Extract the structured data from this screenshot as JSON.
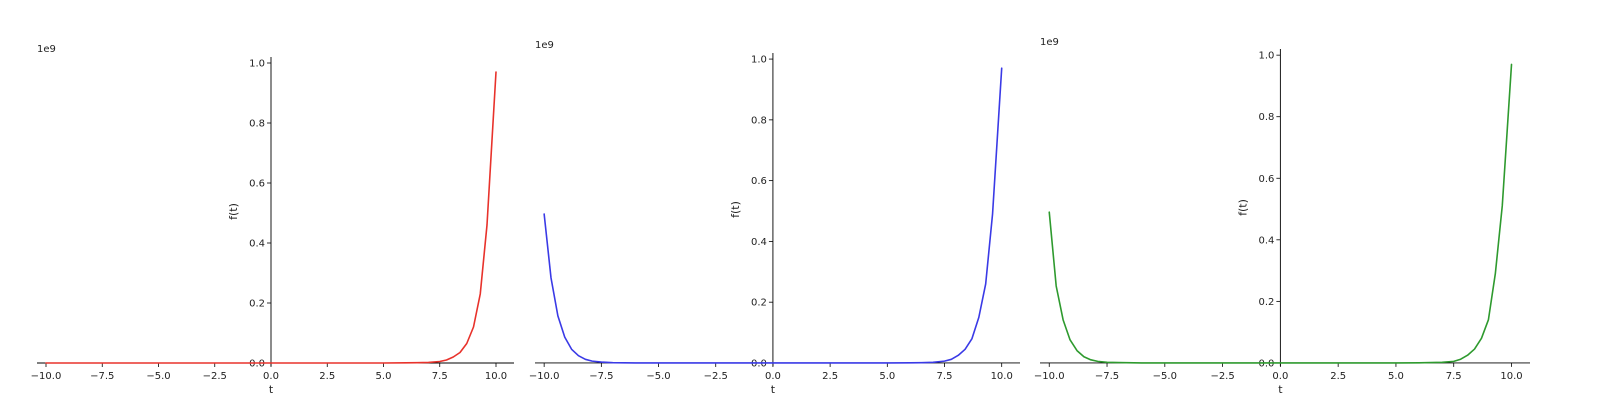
{
  "chart_data": [
    {
      "type": "line",
      "title": "",
      "xlabel": "t",
      "ylabel": "f(t)",
      "y_offset_label": "1e9",
      "xlim": [
        -10.4,
        10.8
      ],
      "ylim": [
        -0.01,
        1.02
      ],
      "x_ticks": [
        -10.0,
        -7.5,
        -5.0,
        -2.5,
        0.0,
        2.5,
        5.0,
        7.5,
        10.0
      ],
      "x_tick_labels": [
        "−10.0",
        "−7.5",
        "−5.0",
        "−2.5",
        "0.0",
        "2.5",
        "5.0",
        "7.5",
        "10.0"
      ],
      "y_ticks": [
        0.0,
        0.2,
        0.4,
        0.6,
        0.8,
        1.0
      ],
      "y_tick_labels": [
        "0.0",
        "0.2",
        "0.4",
        "0.6",
        "0.8",
        "1.0"
      ],
      "grid": false,
      "color": "#e8322b",
      "series": [
        {
          "x": [
            -10,
            -9,
            -8,
            -7,
            -6,
            -5,
            -4,
            -3,
            -2,
            -1,
            0,
            1,
            2,
            3,
            4,
            5,
            6,
            6.5,
            7,
            7.5,
            7.8,
            8.1,
            8.4,
            8.7,
            9.0,
            9.3,
            9.6,
            10.0
          ],
          "values": [
            0,
            0,
            0,
            0,
            0,
            0,
            0,
            0,
            0,
            0,
            0,
            0,
            0,
            0,
            0,
            0,
            0.0005,
            0.001,
            0.002,
            0.005,
            0.01,
            0.02,
            0.035,
            0.065,
            0.12,
            0.23,
            0.46,
            0.97
          ]
        }
      ]
    },
    {
      "type": "line",
      "title": "",
      "xlabel": "t",
      "ylabel": "f(t)",
      "y_offset_label": "1e9",
      "xlim": [
        -10.4,
        10.8
      ],
      "ylim": [
        -0.01,
        1.02
      ],
      "x_ticks": [
        -10.0,
        -7.5,
        -5.0,
        -2.5,
        0.0,
        2.5,
        5.0,
        7.5,
        10.0
      ],
      "x_tick_labels": [
        "−10.0",
        "−7.5",
        "−5.0",
        "−2.5",
        "0.0",
        "2.5",
        "5.0",
        "7.5",
        "10.0"
      ],
      "y_ticks": [
        0.0,
        0.2,
        0.4,
        0.6,
        0.8,
        1.0
      ],
      "y_tick_labels": [
        "0.0",
        "0.2",
        "0.4",
        "0.6",
        "0.8",
        "1.0"
      ],
      "grid": false,
      "color": "#3a3ae6",
      "series": [
        {
          "x": [
            -10.0,
            -9.7,
            -9.4,
            -9.1,
            -8.8,
            -8.5,
            -8.2,
            -7.9,
            -7.5,
            -7.0,
            -6.0,
            -5.0,
            -4.0,
            -3.0,
            -2.0,
            -1.0,
            0,
            1,
            2,
            3,
            4,
            5,
            6,
            6.5,
            7,
            7.5,
            7.8,
            8.1,
            8.4,
            8.7,
            9.0,
            9.3,
            9.6,
            10.0
          ],
          "values": [
            0.49,
            0.28,
            0.155,
            0.085,
            0.045,
            0.024,
            0.012,
            0.006,
            0.003,
            0.001,
            0,
            0,
            0,
            0,
            0,
            0,
            0,
            0,
            0,
            0,
            0,
            0,
            0.0005,
            0.001,
            0.002,
            0.006,
            0.012,
            0.025,
            0.045,
            0.08,
            0.15,
            0.26,
            0.49,
            0.97
          ]
        }
      ]
    },
    {
      "type": "line",
      "title": "",
      "xlabel": "t",
      "ylabel": "f(t)",
      "y_offset_label": "1e9",
      "xlim": [
        -10.4,
        10.8
      ],
      "ylim": [
        -0.01,
        1.02
      ],
      "x_ticks": [
        -10.0,
        -7.5,
        -5.0,
        -2.5,
        0.0,
        2.5,
        5.0,
        7.5,
        10.0
      ],
      "x_tick_labels": [
        "−10.0",
        "−7.5",
        "−5.0",
        "−2.5",
        "0.0",
        "2.5",
        "5.0",
        "7.5",
        "10.0"
      ],
      "y_ticks": [
        0.0,
        0.2,
        0.4,
        0.6,
        0.8,
        1.0
      ],
      "y_tick_labels": [
        "0.0",
        "0.2",
        "0.4",
        "0.6",
        "0.8",
        "1.0"
      ],
      "grid": false,
      "color": "#2e9a2e",
      "series": [
        {
          "x": [
            -10.0,
            -9.7,
            -9.4,
            -9.1,
            -8.8,
            -8.5,
            -8.2,
            -7.9,
            -7.5,
            -7.0,
            -6.0,
            -5.0,
            -4.0,
            -3.0,
            -2.0,
            -1.0,
            0,
            1,
            2,
            3,
            4,
            5,
            6,
            6.5,
            7,
            7.5,
            7.8,
            8.1,
            8.4,
            8.7,
            9.0,
            9.3,
            9.6,
            10.0
          ],
          "values": [
            0.49,
            0.25,
            0.14,
            0.075,
            0.04,
            0.02,
            0.01,
            0.005,
            0.002,
            0.001,
            0,
            0,
            0,
            0,
            0,
            0,
            0,
            0,
            0,
            0,
            0,
            0,
            0.0005,
            0.001,
            0.002,
            0.005,
            0.012,
            0.025,
            0.045,
            0.08,
            0.14,
            0.29,
            0.51,
            0.97
          ]
        }
      ]
    }
  ]
}
